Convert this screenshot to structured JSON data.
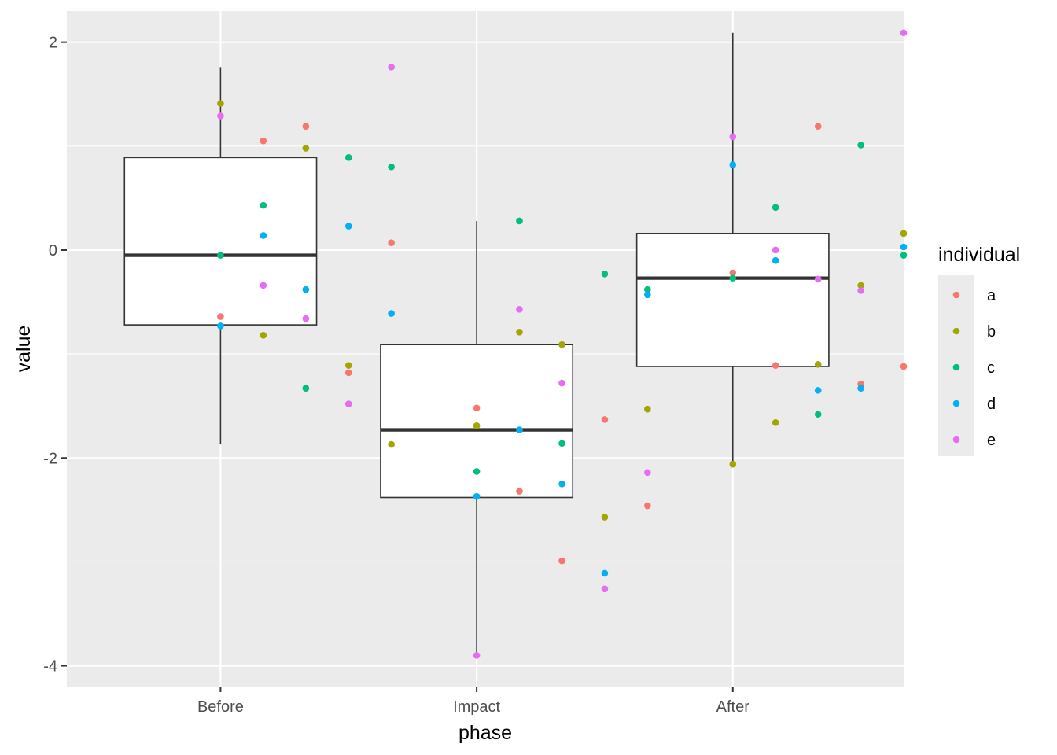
{
  "chart_data": {
    "type": "boxplot with jittered points",
    "xlabel": "phase",
    "ylabel": "value",
    "categories": [
      "Before",
      "Impact",
      "After"
    ],
    "y_ticks": [
      "2",
      "0",
      "-2",
      "-4"
    ],
    "y_tick_values": [
      2,
      0,
      -2,
      -4
    ],
    "ylim": [
      -4.2,
      2.3
    ],
    "grid": true,
    "legend": {
      "title": "individual",
      "position": "right",
      "entries": [
        {
          "label": "a",
          "color": "#F8766D"
        },
        {
          "label": "b",
          "color": "#A3A500"
        },
        {
          "label": "c",
          "color": "#00BF7D"
        },
        {
          "label": "d",
          "color": "#00B0F6"
        },
        {
          "label": "e",
          "color": "#E76BF3"
        }
      ]
    },
    "boxes": [
      {
        "category": "Before",
        "lower_whisker": -1.87,
        "q1": -0.72,
        "median": -0.05,
        "q3": 0.89,
        "upper_whisker": 1.76
      },
      {
        "category": "Impact",
        "lower_whisker": -3.9,
        "q1": -2.38,
        "median": -1.73,
        "q3": -0.91,
        "upper_whisker": 0.28
      },
      {
        "category": "After",
        "lower_whisker": -2.06,
        "q1": -1.12,
        "median": -0.27,
        "q3": 0.16,
        "upper_whisker": 2.09
      }
    ],
    "points": [
      {
        "x": 1.0,
        "y": 1.41,
        "individual": "b"
      },
      {
        "x": 1.0,
        "y": 1.29,
        "individual": "e"
      },
      {
        "x": 1.0,
        "y": -0.05,
        "individual": "c"
      },
      {
        "x": 1.0,
        "y": -0.64,
        "individual": "a"
      },
      {
        "x": 1.0,
        "y": -0.73,
        "individual": "d"
      },
      {
        "x": 1.167,
        "y": 1.05,
        "individual": "a"
      },
      {
        "x": 1.167,
        "y": 0.43,
        "individual": "c"
      },
      {
        "x": 1.167,
        "y": 0.14,
        "individual": "d"
      },
      {
        "x": 1.167,
        "y": -0.34,
        "individual": "e"
      },
      {
        "x": 1.167,
        "y": -0.82,
        "individual": "b"
      },
      {
        "x": 1.333,
        "y": 1.19,
        "individual": "a"
      },
      {
        "x": 1.333,
        "y": 0.98,
        "individual": "b"
      },
      {
        "x": 1.333,
        "y": -0.38,
        "individual": "d"
      },
      {
        "x": 1.333,
        "y": -0.66,
        "individual": "e"
      },
      {
        "x": 1.333,
        "y": -1.33,
        "individual": "c"
      },
      {
        "x": 1.5,
        "y": 0.89,
        "individual": "c"
      },
      {
        "x": 1.5,
        "y": 0.23,
        "individual": "d"
      },
      {
        "x": 1.5,
        "y": -1.11,
        "individual": "b"
      },
      {
        "x": 1.5,
        "y": -1.18,
        "individual": "a"
      },
      {
        "x": 1.5,
        "y": -1.48,
        "individual": "e"
      },
      {
        "x": 1.667,
        "y": 1.76,
        "individual": "e"
      },
      {
        "x": 1.667,
        "y": 0.8,
        "individual": "c"
      },
      {
        "x": 1.667,
        "y": 0.07,
        "individual": "a"
      },
      {
        "x": 1.667,
        "y": -0.61,
        "individual": "d"
      },
      {
        "x": 1.667,
        "y": -1.87,
        "individual": "b"
      },
      {
        "x": 2.0,
        "y": -1.52,
        "individual": "a"
      },
      {
        "x": 2.0,
        "y": -1.69,
        "individual": "b"
      },
      {
        "x": 2.0,
        "y": -2.13,
        "individual": "c"
      },
      {
        "x": 2.0,
        "y": -2.37,
        "individual": "d"
      },
      {
        "x": 2.0,
        "y": -3.9,
        "individual": "e"
      },
      {
        "x": 2.167,
        "y": 0.28,
        "individual": "c"
      },
      {
        "x": 2.167,
        "y": -0.57,
        "individual": "e"
      },
      {
        "x": 2.167,
        "y": -0.79,
        "individual": "b"
      },
      {
        "x": 2.167,
        "y": -1.73,
        "individual": "d"
      },
      {
        "x": 2.167,
        "y": -2.32,
        "individual": "a"
      },
      {
        "x": 2.333,
        "y": -0.91,
        "individual": "b"
      },
      {
        "x": 2.333,
        "y": -1.28,
        "individual": "e"
      },
      {
        "x": 2.333,
        "y": -1.86,
        "individual": "c"
      },
      {
        "x": 2.333,
        "y": -2.25,
        "individual": "d"
      },
      {
        "x": 2.333,
        "y": -2.99,
        "individual": "a"
      },
      {
        "x": 2.5,
        "y": -0.23,
        "individual": "c"
      },
      {
        "x": 2.5,
        "y": -1.63,
        "individual": "a"
      },
      {
        "x": 2.5,
        "y": -2.57,
        "individual": "b"
      },
      {
        "x": 2.5,
        "y": -3.11,
        "individual": "d"
      },
      {
        "x": 2.5,
        "y": -3.26,
        "individual": "e"
      },
      {
        "x": 2.667,
        "y": -0.38,
        "individual": "c"
      },
      {
        "x": 2.667,
        "y": -0.43,
        "individual": "d"
      },
      {
        "x": 2.667,
        "y": -1.53,
        "individual": "b"
      },
      {
        "x": 2.667,
        "y": -2.14,
        "individual": "e"
      },
      {
        "x": 2.667,
        "y": -2.46,
        "individual": "a"
      },
      {
        "x": 3.0,
        "y": 1.09,
        "individual": "e"
      },
      {
        "x": 3.0,
        "y": 0.82,
        "individual": "d"
      },
      {
        "x": 3.0,
        "y": -0.22,
        "individual": "a"
      },
      {
        "x": 3.0,
        "y": -0.27,
        "individual": "c"
      },
      {
        "x": 3.0,
        "y": -2.06,
        "individual": "b"
      },
      {
        "x": 3.167,
        "y": 0.41,
        "individual": "c"
      },
      {
        "x": 3.167,
        "y": 0.0,
        "individual": "e"
      },
      {
        "x": 3.167,
        "y": -0.1,
        "individual": "d"
      },
      {
        "x": 3.167,
        "y": -1.11,
        "individual": "a"
      },
      {
        "x": 3.167,
        "y": -1.66,
        "individual": "b"
      },
      {
        "x": 3.333,
        "y": 1.19,
        "individual": "a"
      },
      {
        "x": 3.333,
        "y": -0.28,
        "individual": "e"
      },
      {
        "x": 3.333,
        "y": -1.1,
        "individual": "b"
      },
      {
        "x": 3.333,
        "y": -1.35,
        "individual": "d"
      },
      {
        "x": 3.333,
        "y": -1.58,
        "individual": "c"
      },
      {
        "x": 3.5,
        "y": 1.01,
        "individual": "c"
      },
      {
        "x": 3.5,
        "y": -0.34,
        "individual": "b"
      },
      {
        "x": 3.5,
        "y": -0.39,
        "individual": "e"
      },
      {
        "x": 3.5,
        "y": -1.29,
        "individual": "a"
      },
      {
        "x": 3.5,
        "y": -1.33,
        "individual": "d"
      },
      {
        "x": 3.667,
        "y": 2.09,
        "individual": "e"
      },
      {
        "x": 3.667,
        "y": 0.16,
        "individual": "b"
      },
      {
        "x": 3.667,
        "y": 0.03,
        "individual": "d"
      },
      {
        "x": 3.667,
        "y": -0.05,
        "individual": "c"
      },
      {
        "x": 3.667,
        "y": -1.12,
        "individual": "a"
      }
    ],
    "colors": {
      "panel_background": "#EBEBEB",
      "grid_line": "#FFFFFF",
      "box_fill": "#FFFFFF",
      "box_line": "#333333"
    }
  }
}
